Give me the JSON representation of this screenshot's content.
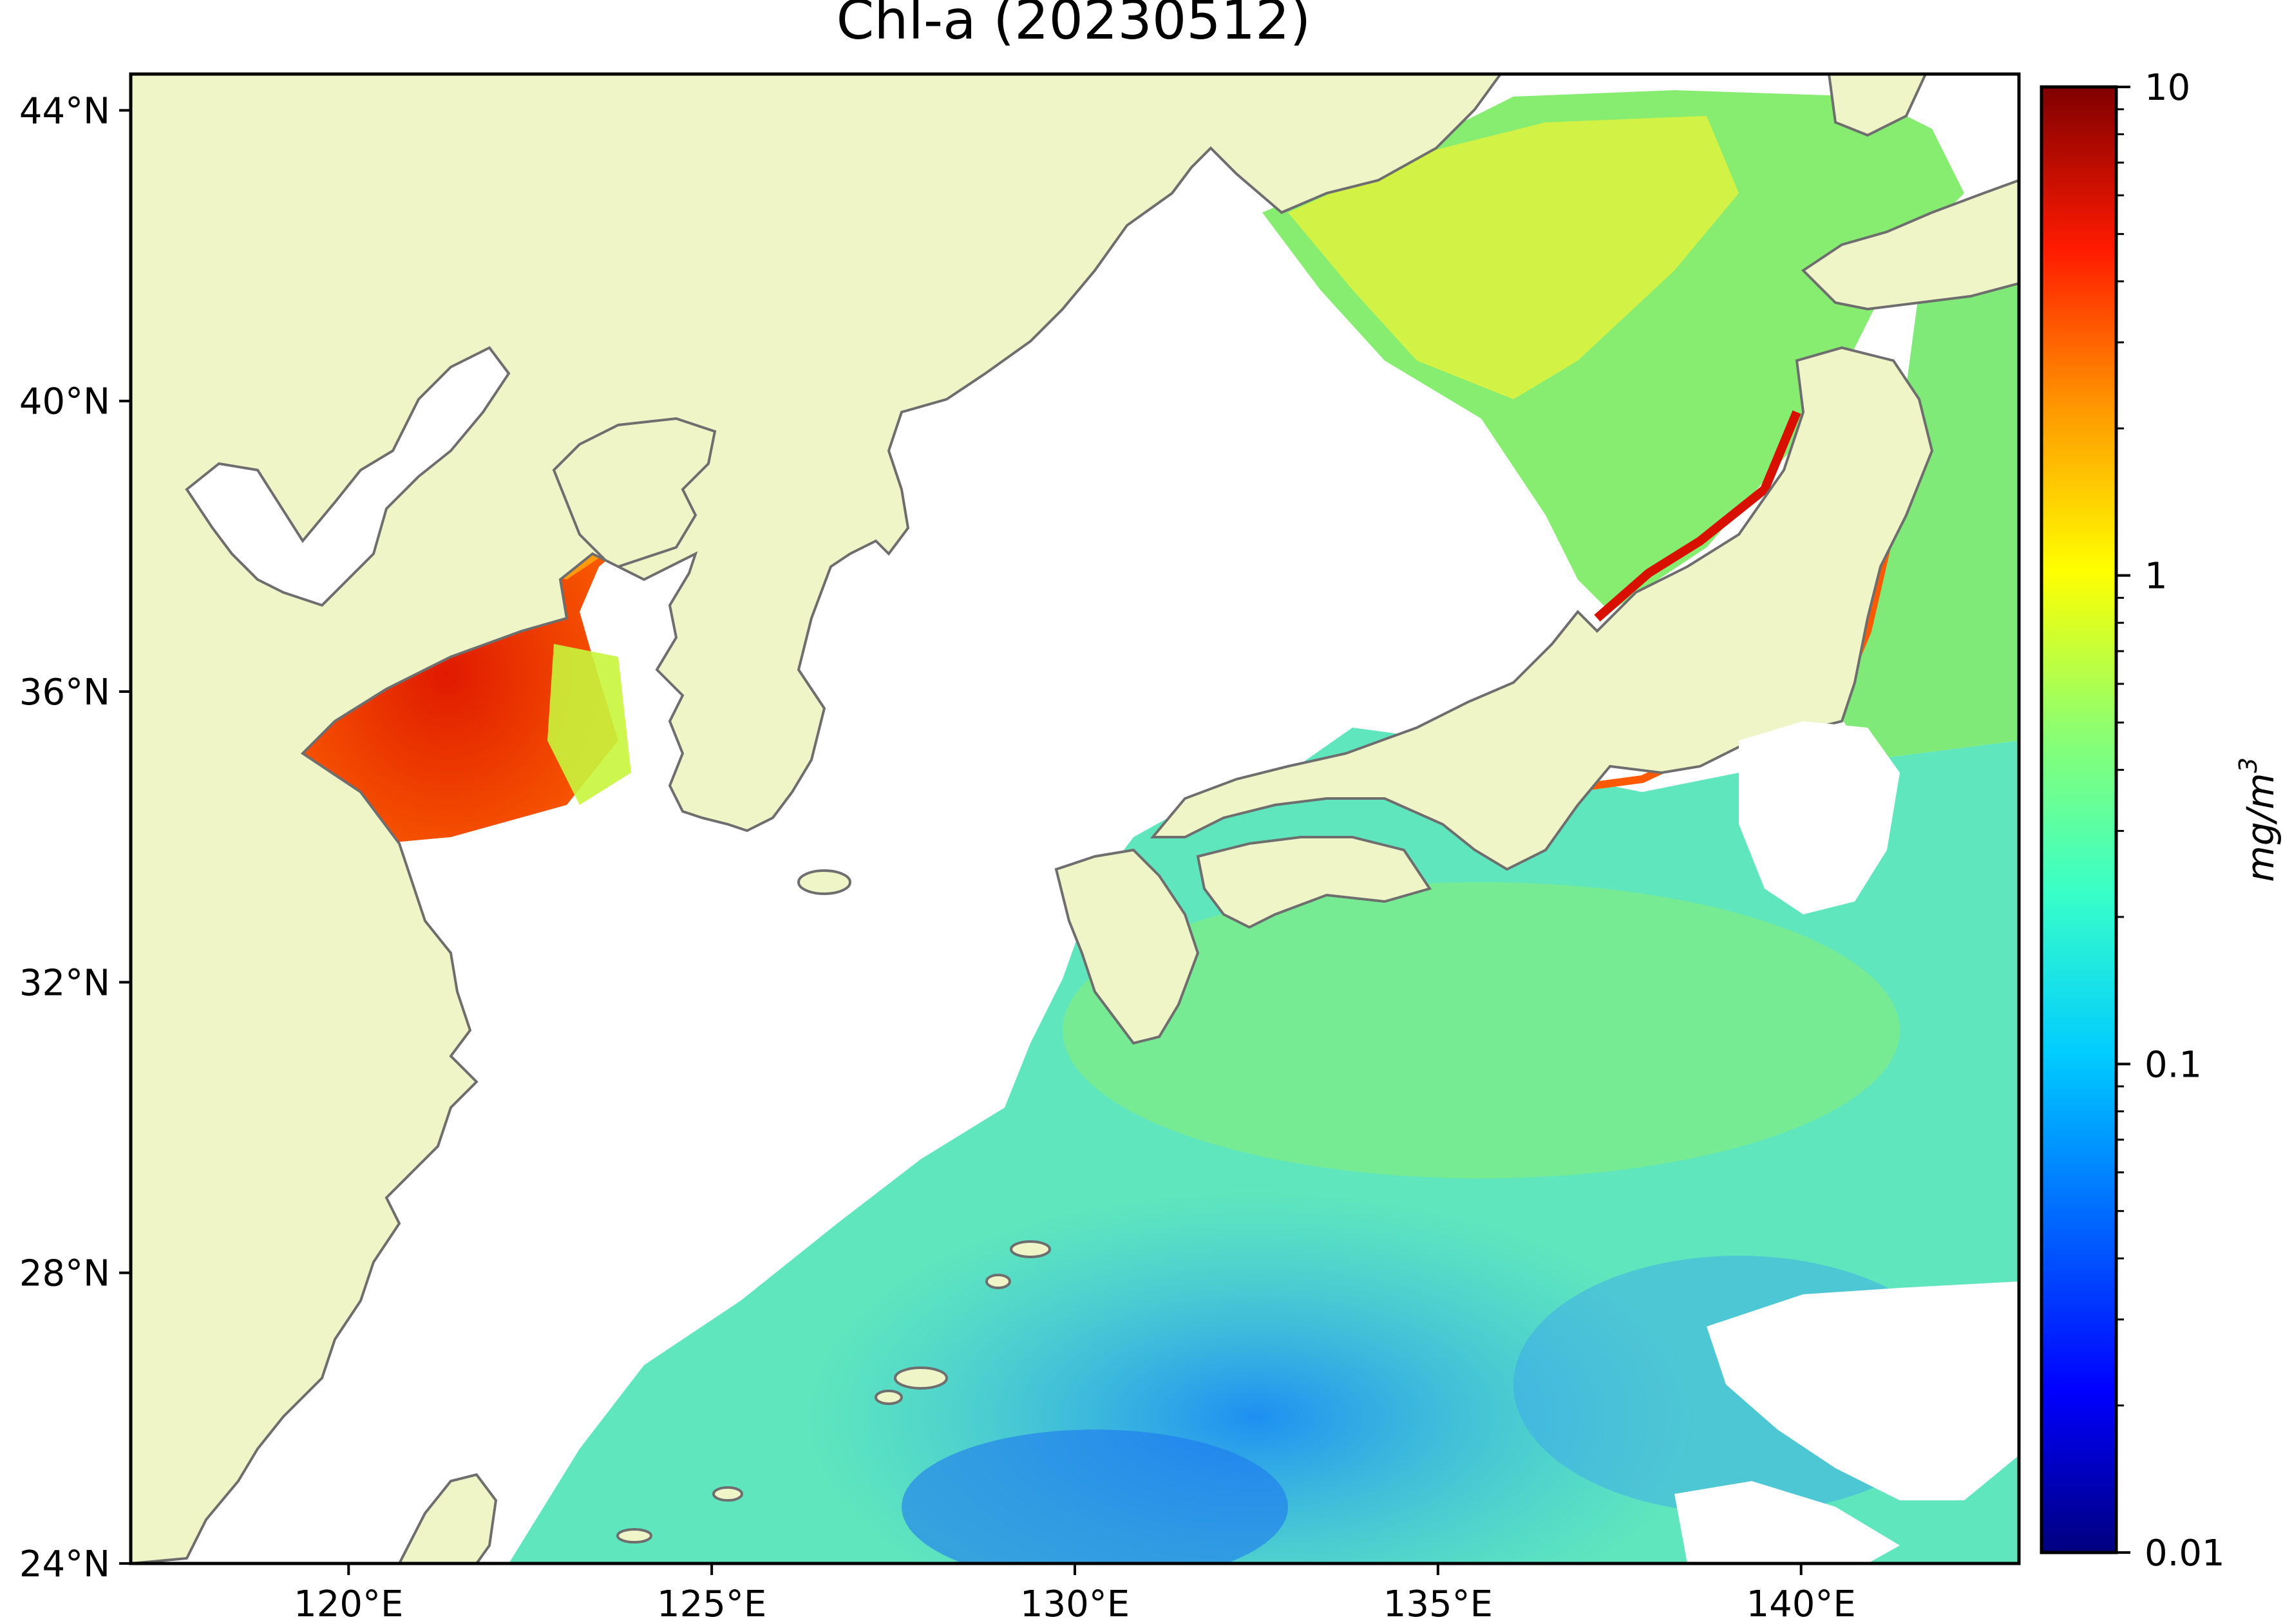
{
  "title": "Chl-a (20230512)",
  "colors": {
    "land": "#eff5c7",
    "no_data": "#ffffff",
    "coastline": "#6e6e6e",
    "colormap": [
      "#00007f",
      "#0000ff",
      "#007fff",
      "#00ffff",
      "#7fff7f",
      "#ffff00",
      "#ff7f00",
      "#ff0000",
      "#7f0000"
    ]
  },
  "map": {
    "lon_range": [
      117,
      143
    ],
    "lat_range": [
      24,
      44.5
    ],
    "x_ticks": [
      {
        "value": 120,
        "label": "120°E"
      },
      {
        "value": 125,
        "label": "125°E"
      },
      {
        "value": 130,
        "label": "130°E"
      },
      {
        "value": 135,
        "label": "135°E"
      },
      {
        "value": 140,
        "label": "140°E"
      }
    ],
    "y_ticks": [
      {
        "value": 24,
        "label": "24°N"
      },
      {
        "value": 28,
        "label": "28°N"
      },
      {
        "value": 32,
        "label": "32°N"
      },
      {
        "value": 36,
        "label": "36°N"
      },
      {
        "value": 40,
        "label": "40°N"
      },
      {
        "value": 44,
        "label": "44°N"
      }
    ]
  },
  "colorbar": {
    "label": "mg/m",
    "label_sup": "3",
    "scale": "log",
    "range": [
      0.01,
      10
    ],
    "major_ticks": [
      {
        "value": 0.01,
        "label": "0.01"
      },
      {
        "value": 0.1,
        "label": "0.1"
      },
      {
        "value": 1,
        "label": "1"
      },
      {
        "value": 10,
        "label": "10"
      }
    ]
  }
}
